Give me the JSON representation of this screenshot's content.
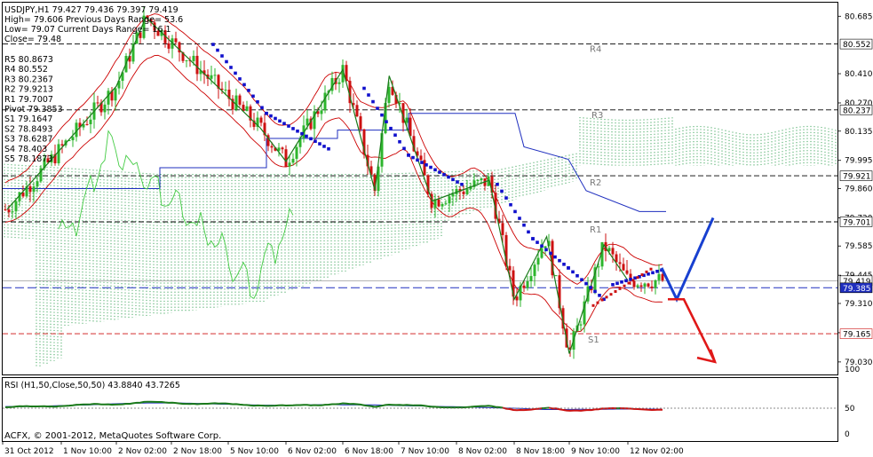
{
  "header": {
    "line1": "USDJPY,H1  79.427 79.436 79.397 79.419",
    "line2": "High= 79.606    Previous Days Range= 53.6",
    "line3": "Low= 79.07     Current Days Range= 16.1",
    "line4": "Close= 79.48"
  },
  "pivots": {
    "left_list": [
      "R5 80.8673",
      "R4 80.552",
      "R3 80.2367",
      "R2 79.9213",
      "R1 79.7007",
      "Pivot 79.3853",
      "S1 79.1647",
      "S2 78.8493",
      "S3 78.6287",
      "S4 78.403",
      "S5 78.1873"
    ],
    "labels": [
      "R4",
      "R3",
      "R2",
      "R1",
      "S1"
    ]
  },
  "price_axis": {
    "ticks": [
      "80.685",
      "80.410",
      "80.270",
      "80.135",
      "79.995",
      "79.860",
      "79.720",
      "79.585",
      "79.445",
      "79.310",
      "79.170",
      "79.030"
    ],
    "marked": [
      "80.552",
      "80.237",
      "79.921",
      "79.701",
      "79.419",
      "79.385",
      "79.165"
    ]
  },
  "time_axis": [
    "31 Oct 2012",
    "1 Nov 10:00",
    "2 Nov 02:00",
    "2 Nov 18:00",
    "5 Nov 10:00",
    "6 Nov 02:00",
    "6 Nov 18:00",
    "7 Nov 10:00",
    "8 Nov 02:00",
    "8 Nov 18:00",
    "9 Nov 10:00",
    "12 Nov 02:00"
  ],
  "rsi": {
    "label": "RSI (H1,50,Close,50,50) 43.8840 43.7265",
    "ticks": [
      "100",
      "50",
      "0"
    ]
  },
  "copyright": "ACFX, © 2001-2012, MetaQuotes Software Corp.",
  "colors": {
    "bull": "#2db52d",
    "bear": "#cc1111",
    "zigzag": "#1a7a1a",
    "envelope": "#cc0000",
    "kijun": "#1f2fbf",
    "cloud": "#2e9e4e",
    "chikou": "#44cc44",
    "psar": "#1010cc",
    "arrow_up": "#1840d0",
    "arrow_down": "#e01818"
  },
  "chart_data": {
    "type": "candlestick",
    "symbol": "USDJPY",
    "timeframe": "H1",
    "ylim": [
      78.97,
      80.75
    ],
    "pivot_levels": {
      "R4": 80.552,
      "R3": 80.2367,
      "R2": 79.9213,
      "R1": 79.7007,
      "Pivot": 79.3853,
      "S1": 79.1647
    },
    "key_swings": [
      {
        "t": "31 Oct 2012",
        "price": 79.76
      },
      {
        "t": "2 Nov 02:00",
        "price": 80.35
      },
      {
        "t": "2 Nov 10:00",
        "price": 80.68
      },
      {
        "t": "5 Nov 18:00",
        "price": 80.15
      },
      {
        "t": "6 Nov 02:00",
        "price": 79.99
      },
      {
        "t": "6 Nov 18:00",
        "price": 80.43
      },
      {
        "t": "7 Nov 02:00",
        "price": 79.85
      },
      {
        "t": "7 Nov 06:00",
        "price": 80.4
      },
      {
        "t": "7 Nov 18:00",
        "price": 79.8
      },
      {
        "t": "8 Nov 10:00",
        "price": 79.9
      },
      {
        "t": "8 Nov 18:00",
        "price": 79.33
      },
      {
        "t": "9 Nov 02:00",
        "price": 79.63
      },
      {
        "t": "9 Nov 10:00",
        "price": 79.07
      },
      {
        "t": "9 Nov 18:00",
        "price": 79.59
      },
      {
        "t": "12 Nov 02:00",
        "price": 79.42
      }
    ]
  }
}
